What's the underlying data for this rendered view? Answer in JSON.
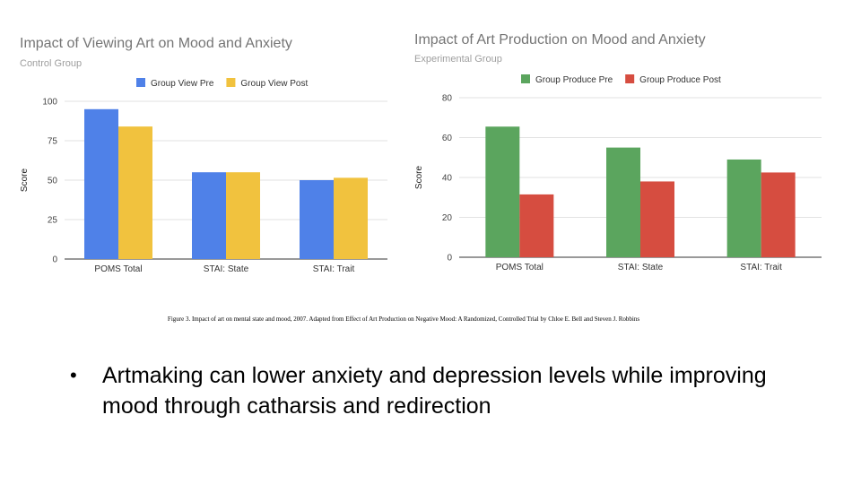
{
  "chart_data": [
    {
      "type": "bar",
      "title": "Impact of Viewing Art on Mood and Anxiety",
      "subtitle": "Control Group",
      "ylabel": "Score",
      "xlabel": "",
      "categories": [
        "POMS Total",
        "STAI: State",
        "STAI: Trait"
      ],
      "series": [
        {
          "name": "Group View Pre",
          "color": "#4f81e8",
          "values": [
            95,
            55,
            50
          ]
        },
        {
          "name": "Group View Post",
          "color": "#f1c23e",
          "values": [
            84,
            55,
            51.5
          ]
        }
      ],
      "ylim": [
        0,
        100
      ],
      "yticks": [
        "0",
        "25",
        "50",
        "75",
        "100"
      ],
      "grid": true,
      "legend": "top"
    },
    {
      "type": "bar",
      "title": "Impact of Art Production on Mood and Anxiety",
      "subtitle": "Experimental Group",
      "ylabel": "Score",
      "xlabel": "",
      "categories": [
        "POMS Total",
        "STAI: State",
        "STAI: Trait"
      ],
      "series": [
        {
          "name": "Group Produce Pre",
          "color": "#5ba55e",
          "values": [
            65.5,
            55,
            49
          ]
        },
        {
          "name": "Group Produce Post",
          "color": "#d64d40",
          "values": [
            31.5,
            38,
            42.5
          ]
        }
      ],
      "ylim": [
        0,
        80
      ],
      "yticks": [
        "0",
        "20",
        "40",
        "60",
        "80"
      ],
      "grid": true,
      "legend": "top"
    }
  ],
  "caption": "Figure 3. Impact of art on mental state and mood, 2007. Adapted from Effect of Art Production on Negative Mood: A Randomized, Controlled Trial by Chloe E. Bell and Steven J. Robbins",
  "bullet": {
    "marker": "•",
    "text": "Artmaking can lower anxiety and depression levels while improving mood through catharsis and redirection"
  }
}
